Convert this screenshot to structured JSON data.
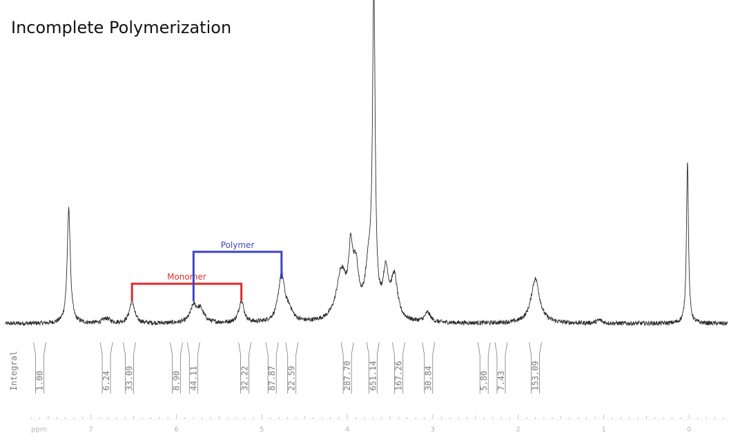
{
  "title": "Incomplete Polymerization",
  "chart_data": {
    "type": "line",
    "title": "Incomplete Polymerization",
    "xlabel": "ppm",
    "xlim": [
      8.0,
      -0.45
    ],
    "x_reversed": true,
    "ylim": [
      0,
      100
    ],
    "x_ticks": [
      {
        "value": 7,
        "label": "7"
      },
      {
        "value": 6,
        "label": "6"
      },
      {
        "value": 5,
        "label": "5"
      },
      {
        "value": 4,
        "label": "4"
      },
      {
        "value": 3,
        "label": "3"
      },
      {
        "value": 2,
        "label": "2"
      },
      {
        "value": 1,
        "label": "1"
      },
      {
        "value": 0,
        "label": "0"
      }
    ],
    "baseline": 2,
    "peaks": [
      {
        "ppm": 7.26,
        "height": 36,
        "width": 0.022
      },
      {
        "ppm": 6.82,
        "height": 1.5,
        "width": 0.05
      },
      {
        "ppm": 6.52,
        "height": 7,
        "width": 0.035
      },
      {
        "ppm": 5.8,
        "height": 5,
        "width": 0.045
      },
      {
        "ppm": 5.72,
        "height": 4,
        "width": 0.05
      },
      {
        "ppm": 5.24,
        "height": 7,
        "width": 0.035
      },
      {
        "ppm": 4.77,
        "height": 15,
        "width": 0.045
      },
      {
        "ppm": 4.68,
        "height": 3,
        "width": 0.05
      },
      {
        "ppm": 4.07,
        "height": 15,
        "width": 0.07
      },
      {
        "ppm": 3.96,
        "height": 18,
        "width": 0.03
      },
      {
        "ppm": 3.9,
        "height": 14,
        "width": 0.04
      },
      {
        "ppm": 3.69,
        "height": 100,
        "width": 0.018
      },
      {
        "ppm": 3.75,
        "height": 15,
        "width": 0.05
      },
      {
        "ppm": 3.55,
        "height": 14,
        "width": 0.04
      },
      {
        "ppm": 3.45,
        "height": 13,
        "width": 0.045
      },
      {
        "ppm": 3.06,
        "height": 3,
        "width": 0.04
      },
      {
        "ppm": 1.8,
        "height": 14,
        "width": 0.06
      },
      {
        "ppm": 1.05,
        "height": 1,
        "width": 0.04
      },
      {
        "ppm": 0.02,
        "height": 51,
        "width": 0.014
      }
    ],
    "annotations": [
      {
        "label": "Monomer",
        "color": "#dd2a2a",
        "left_ppm": 6.52,
        "right_ppm": 5.24,
        "top": 14.5
      },
      {
        "label": "Polymer",
        "color": "#3c43c6",
        "left_ppm": 5.8,
        "right_ppm": 4.77,
        "top": 24.5
      }
    ],
    "integrals": {
      "axis_label": "Integral",
      "values": [
        {
          "ppm": 7.6,
          "label": "1.00"
        },
        {
          "ppm": 6.82,
          "label": "6.24"
        },
        {
          "ppm": 6.55,
          "label": "33.09"
        },
        {
          "ppm": 6.0,
          "label": "8.90"
        },
        {
          "ppm": 5.8,
          "label": "44.11"
        },
        {
          "ppm": 5.2,
          "label": "32.22"
        },
        {
          "ppm": 4.88,
          "label": "87.87"
        },
        {
          "ppm": 4.65,
          "label": "22.59"
        },
        {
          "ppm": 4.0,
          "label": "287.70"
        },
        {
          "ppm": 3.7,
          "label": "651.14"
        },
        {
          "ppm": 3.4,
          "label": "167.26"
        },
        {
          "ppm": 3.05,
          "label": "30.84"
        },
        {
          "ppm": 2.4,
          "label": "5.80"
        },
        {
          "ppm": 2.2,
          "label": "7.43"
        },
        {
          "ppm": 1.8,
          "label": "153.09"
        }
      ]
    },
    "colors": {
      "trace": "#2a2a2a",
      "integral": "#7a7a7a",
      "axis": "#b5b5b5"
    }
  }
}
